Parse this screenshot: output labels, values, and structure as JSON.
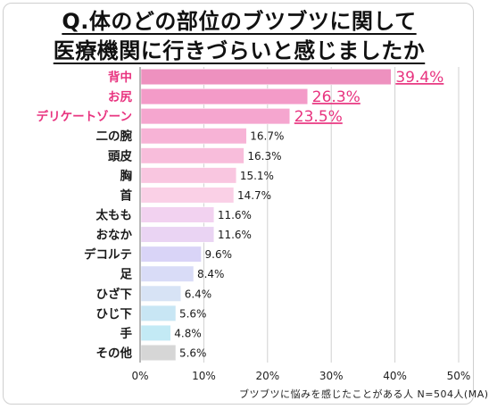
{
  "title": {
    "line1": "Q.体のどの部位のブツブツに関して",
    "line2": "医療機関に行きづらいと感じましたか"
  },
  "chart_data": {
    "type": "bar",
    "orientation": "horizontal",
    "categories": [
      "背中",
      "お尻",
      "デリケートゾーン",
      "二の腕",
      "頭皮",
      "胸",
      "首",
      "太もも",
      "おなか",
      "デコルテ",
      "足",
      "ひざ下",
      "ひじ下",
      "手",
      "その他"
    ],
    "values": [
      39.4,
      26.3,
      23.5,
      16.7,
      16.3,
      15.1,
      14.7,
      11.6,
      11.6,
      9.6,
      8.4,
      6.4,
      5.6,
      4.8,
      5.6
    ],
    "value_labels": [
      "39.4%",
      "26.3%",
      "23.5%",
      "16.7%",
      "16.3%",
      "15.1%",
      "14.7%",
      "11.6%",
      "11.6%",
      "9.6%",
      "8.4%",
      "6.4%",
      "5.6%",
      "4.8%",
      "5.6%"
    ],
    "highlight_top": 3,
    "colors": [
      "#ee91bf",
      "#f39bc8",
      "#f5a6cf",
      "#f7b3d6",
      "#f8bddb",
      "#f9c6e0",
      "#fad0e6",
      "#f2d2f0",
      "#ead4f3",
      "#d9d4f7",
      "#d9dcf7",
      "#d7e3f5",
      "#c8e6f4",
      "#c3eaf5",
      "#d6d6d6"
    ],
    "highlight_color": "#e8337f",
    "xlim": [
      0,
      50
    ],
    "xticks": [
      0,
      10,
      20,
      30,
      40,
      50
    ],
    "xtick_labels": [
      "0%",
      "10%",
      "20%",
      "30%",
      "40%",
      "50%"
    ],
    "grid": true,
    "footnote": "ブツブツに悩みを感じたことがある人 N=504人(MA)"
  }
}
